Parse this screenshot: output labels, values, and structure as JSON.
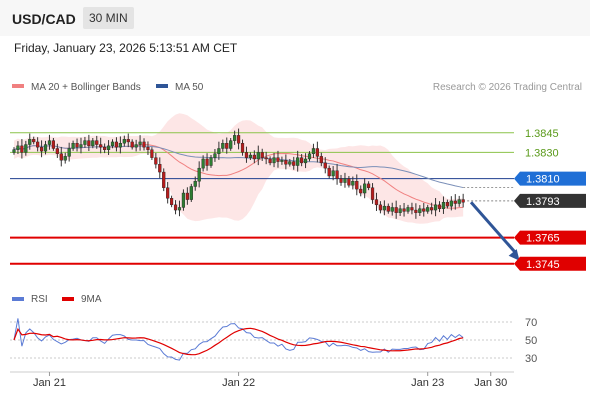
{
  "header": {
    "symbol": "USD/CAD",
    "timeframe": "30 MIN"
  },
  "datetime": "Friday, January 23, 2026 5:13:51 AM CET",
  "credit": "Research © 2026 Trading Central",
  "legend_main": [
    {
      "label": "MA 20 + Bollinger Bands",
      "color": "#f08080"
    },
    {
      "label": "MA 50",
      "color": "#2f5597"
    }
  ],
  "legend_rsi": [
    {
      "label": "RSI",
      "color": "#5b7bd5"
    },
    {
      "label": "9MA",
      "color": "#e00000"
    }
  ],
  "colors": {
    "up": "#2e7d32",
    "down": "#b71c1c",
    "resistance": "#8bc34a",
    "support": "#e00000",
    "pivot": "#1f3f8f",
    "current": "#333333",
    "band": "#fbd5d5",
    "arrow": "#2f5597"
  },
  "chart_data": {
    "type": "candlestick",
    "y_range": [
      1.3725,
      1.387
    ],
    "levels": [
      {
        "value": 1.3845,
        "label": "1.3845",
        "kind": "resistance"
      },
      {
        "value": 1.383,
        "label": "1.3830",
        "kind": "resistance"
      },
      {
        "value": 1.381,
        "label": "1.3810",
        "kind": "pivot"
      },
      {
        "value": 1.3793,
        "label": "1.3793",
        "kind": "current"
      },
      {
        "value": 1.3765,
        "label": "1.3765",
        "kind": "support"
      },
      {
        "value": 1.3745,
        "label": "1.3745",
        "kind": "support"
      }
    ],
    "x_ticks": [
      {
        "label": "Jan 21",
        "bar": 9
      },
      {
        "label": "Jan 22",
        "bar": 57
      },
      {
        "label": "Jan 23",
        "bar": 105
      },
      {
        "label": "Jan 30",
        "bar": 121
      }
    ],
    "forecast": {
      "from_bar": 116,
      "from": 1.3792,
      "to_bar": 124,
      "to": 1.3745
    },
    "closes": [
      1.3832,
      1.3835,
      1.383,
      1.3836,
      1.384,
      1.3838,
      1.3834,
      1.3831,
      1.3836,
      1.3839,
      1.3833,
      1.3829,
      1.3824,
      1.3827,
      1.3833,
      1.3837,
      1.3834,
      1.3836,
      1.3839,
      1.3835,
      1.3839,
      1.3836,
      1.3834,
      1.3832,
      1.3835,
      1.3838,
      1.3834,
      1.3837,
      1.384,
      1.3838,
      1.3834,
      1.3836,
      1.3838,
      1.3834,
      1.3832,
      1.3826,
      1.3821,
      1.3815,
      1.3803,
      1.3795,
      1.379,
      1.3786,
      1.3788,
      1.3799,
      1.3794,
      1.3804,
      1.3808,
      1.3818,
      1.3825,
      1.382,
      1.3826,
      1.3829,
      1.3833,
      1.3837,
      1.3833,
      1.3839,
      1.3843,
      1.3837,
      1.383,
      1.3826,
      1.3828,
      1.3825,
      1.383,
      1.3826,
      1.3825,
      1.3822,
      1.3826,
      1.3823,
      1.3824,
      1.3821,
      1.3823,
      1.382,
      1.3826,
      1.3822,
      1.3825,
      1.3829,
      1.3833,
      1.3827,
      1.3822,
      1.3818,
      1.3812,
      1.3816,
      1.381,
      1.3807,
      1.381,
      1.3805,
      1.3808,
      1.3802,
      1.3799,
      1.3806,
      1.3803,
      1.3794,
      1.379,
      1.3786,
      1.3789,
      1.3785,
      1.3788,
      1.3784,
      1.3787,
      1.3785,
      1.3788,
      1.3786,
      1.3784,
      1.3787,
      1.3785,
      1.3788,
      1.3786,
      1.379,
      1.3787,
      1.3792,
      1.3789,
      1.3793,
      1.3791,
      1.3794,
      1.3792
    ],
    "rsi_range": [
      20,
      80
    ],
    "rsi_ticks": [
      70,
      50,
      30
    ]
  }
}
